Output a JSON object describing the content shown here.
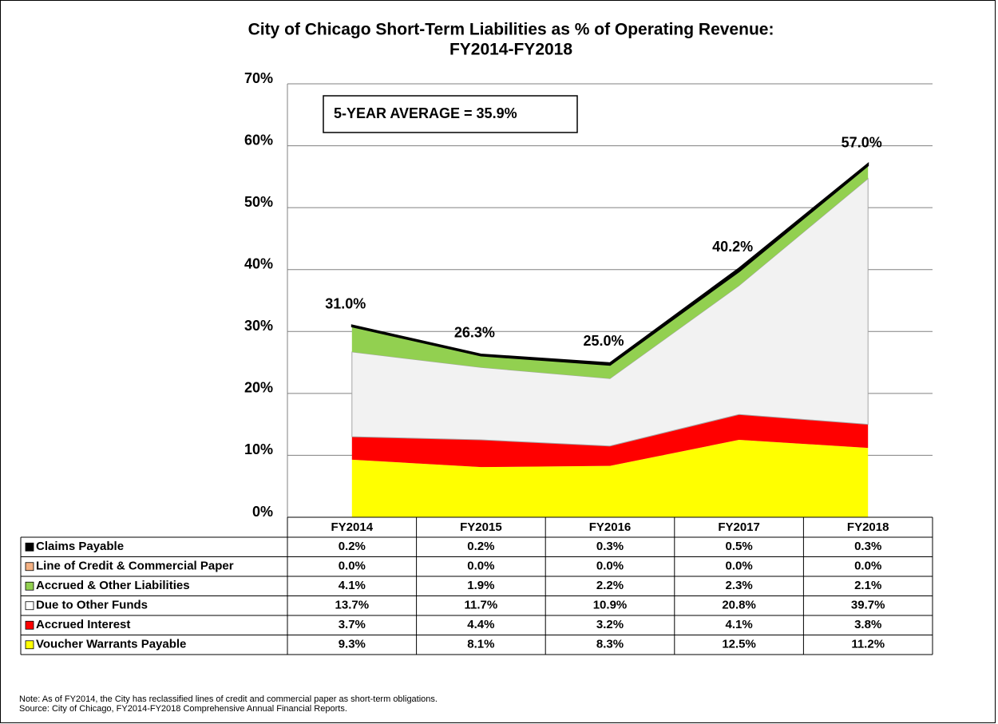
{
  "chart_data": {
    "type": "stacked_area",
    "title": [
      "City of Chicago Short-Term Liabilities as % of Operating Revenue:",
      "FY2014-FY2018"
    ],
    "annotation": "5-YEAR AVERAGE = 35.9%",
    "categories": [
      "FY2014",
      "FY2015",
      "FY2016",
      "FY2017",
      "FY2018"
    ],
    "series": [
      {
        "name": "Voucher Warrants Payable",
        "color": "#ffff00",
        "values": [
          9.3,
          8.1,
          8.3,
          12.5,
          11.2
        ],
        "value_labels": [
          "9.3%",
          "8.1%",
          "8.3%",
          "12.5%",
          "11.2%"
        ]
      },
      {
        "name": "Accrued Interest",
        "color": "#ff0000",
        "values": [
          3.7,
          4.4,
          3.2,
          4.1,
          3.8
        ],
        "value_labels": [
          "3.7%",
          "4.4%",
          "3.2%",
          "4.1%",
          "3.8%"
        ]
      },
      {
        "name": "Due to Other Funds",
        "color": "#f2f2f2",
        "values": [
          13.7,
          11.7,
          10.9,
          20.8,
          39.7
        ],
        "value_labels": [
          "13.7%",
          "11.7%",
          "10.9%",
          "20.8%",
          "39.7%"
        ]
      },
      {
        "name": "Accrued & Other Liabilities",
        "color": "#92d050",
        "values": [
          4.1,
          1.9,
          2.2,
          2.3,
          2.1
        ],
        "value_labels": [
          "4.1%",
          "1.9%",
          "2.2%",
          "2.3%",
          "2.1%"
        ]
      },
      {
        "name": "Line of Credit  & Commercial Paper",
        "color": "#f4b183",
        "values": [
          0.0,
          0.0,
          0.0,
          0.0,
          0.0
        ],
        "value_labels": [
          "0.0%",
          "0.0%",
          "0.0%",
          "0.0%",
          "0.0%"
        ]
      },
      {
        "name": "Claims Payable",
        "color": "#000000",
        "values": [
          0.2,
          0.2,
          0.3,
          0.5,
          0.3
        ],
        "value_labels": [
          "0.2%",
          "0.2%",
          "0.3%",
          "0.5%",
          "0.3%"
        ]
      }
    ],
    "totals": {
      "values": [
        31.0,
        26.3,
        25.0,
        40.2,
        57.0
      ],
      "value_labels": [
        "31.0%",
        "26.3%",
        "25.0%",
        "40.2%",
        "57.0%"
      ]
    },
    "ylim": [
      0,
      70
    ],
    "yticks": [
      {
        "value": 0,
        "label": "0%"
      },
      {
        "value": 10,
        "label": "10%"
      },
      {
        "value": 20,
        "label": "20%"
      },
      {
        "value": 30,
        "label": "30%"
      },
      {
        "value": 40,
        "label": "40%"
      },
      {
        "value": 50,
        "label": "50%"
      },
      {
        "value": 60,
        "label": "60%"
      },
      {
        "value": 70,
        "label": "70%"
      }
    ],
    "grid": true,
    "notes": [
      "Note: As of FY2014, the City has reclassified lines of credit and commercial paper as short-term obligations.",
      "Source: City of Chicago, FY2014-FY2018 Comprehensive Annual Financial Reports."
    ]
  }
}
